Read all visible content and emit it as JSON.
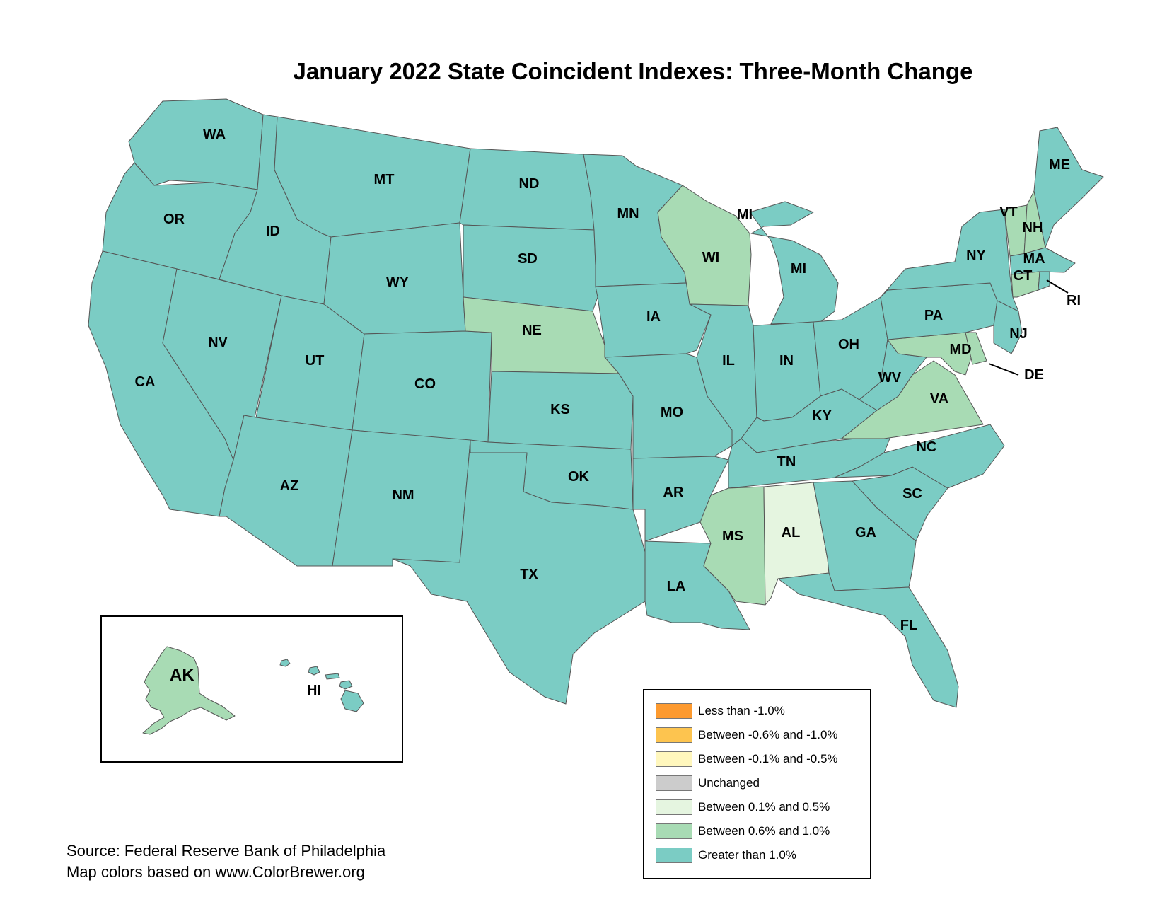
{
  "title": "January 2022 State Coincident Indexes: Three-Month Change",
  "colors": {
    "lt_neg1": "#fd9a2f",
    "neg06_neg1": "#fdc44f",
    "neg01_neg05": "#fff7bd",
    "unchanged": "#cccccc",
    "p01_p05": "#e5f5e0",
    "p06_p1": "#a8dbb4",
    "gt1": "#7bccc4",
    "border": "#555555"
  },
  "legend": [
    {
      "label": "Less than -1.0%",
      "color_key": "lt_neg1"
    },
    {
      "label": "Between -0.6% and -1.0%",
      "color_key": "neg06_neg1"
    },
    {
      "label": "Between -0.1% and -0.5%",
      "color_key": "neg01_neg05"
    },
    {
      "label": "Unchanged",
      "color_key": "unchanged"
    },
    {
      "label": "Between 0.1% and 0.5%",
      "color_key": "p01_p05"
    },
    {
      "label": "Between 0.6% and 1.0%",
      "color_key": "p06_p1"
    },
    {
      "label": "Greater than 1.0%",
      "color_key": "gt1"
    }
  ],
  "states": {
    "WA": "Greater than 1.0%",
    "OR": "Greater than 1.0%",
    "CA": "Greater than 1.0%",
    "ID": "Greater than 1.0%",
    "NV": "Greater than 1.0%",
    "MT": "Greater than 1.0%",
    "WY": "Greater than 1.0%",
    "UT": "Greater than 1.0%",
    "AZ": "Greater than 1.0%",
    "CO": "Greater than 1.0%",
    "NM": "Greater than 1.0%",
    "ND": "Greater than 1.0%",
    "SD": "Greater than 1.0%",
    "NE": "Between 0.6% and 1.0%",
    "KS": "Greater than 1.0%",
    "OK": "Greater than 1.0%",
    "TX": "Greater than 1.0%",
    "MN": "Greater than 1.0%",
    "IA": "Greater than 1.0%",
    "MO": "Greater than 1.0%",
    "AR": "Greater than 1.0%",
    "LA": "Greater than 1.0%",
    "WI": "Between 0.6% and 1.0%",
    "IL": "Greater than 1.0%",
    "MI": "Greater than 1.0%",
    "IN": "Greater than 1.0%",
    "OH": "Greater than 1.0%",
    "KY": "Greater than 1.0%",
    "TN": "Greater than 1.0%",
    "MS": "Between 0.6% and 1.0%",
    "AL": "Between 0.1% and 0.5%",
    "GA": "Greater than 1.0%",
    "FL": "Greater than 1.0%",
    "SC": "Greater than 1.0%",
    "NC": "Greater than 1.0%",
    "VA": "Between 0.6% and 1.0%",
    "WV": "Greater than 1.0%",
    "PA": "Greater than 1.0%",
    "NY": "Greater than 1.0%",
    "VT": "Between 0.6% and 1.0%",
    "NH": "Between 0.6% and 1.0%",
    "ME": "Greater than 1.0%",
    "MA": "Greater than 1.0%",
    "CT": "Between 0.6% and 1.0%",
    "RI": "Greater than 1.0%",
    "NJ": "Greater than 1.0%",
    "DE": "Between 0.6% and 1.0%",
    "MD": "Between 0.6% and 1.0%",
    "AK": "Between 0.6% and 1.0%",
    "HI": "Greater than 1.0%"
  },
  "source": {
    "line1": "Source: Federal Reserve Bank of Philadelphia",
    "line2": "Map colors based on www.ColorBrewer.org"
  }
}
